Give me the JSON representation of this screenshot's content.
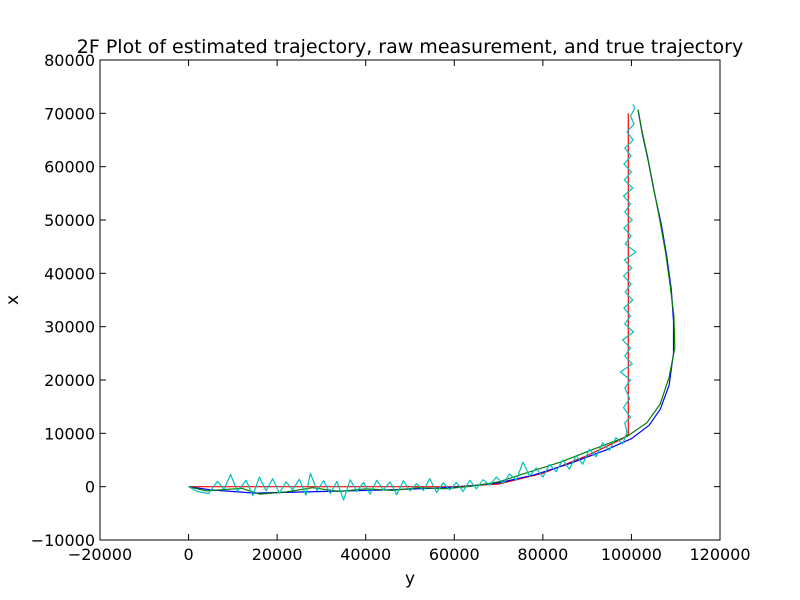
{
  "chart_data": {
    "type": "line",
    "title": "2F Plot of estimated trajectory, raw measurement, and true trajectory",
    "xlabel": "y",
    "ylabel": "x",
    "xlim": [
      -20000,
      120000
    ],
    "ylim": [
      -10000,
      80000
    ],
    "xticks": [
      -20000,
      0,
      20000,
      40000,
      60000,
      80000,
      100000,
      120000
    ],
    "yticks": [
      -10000,
      0,
      10000,
      20000,
      30000,
      40000,
      50000,
      60000,
      70000,
      80000
    ],
    "xtick_labels": [
      "−20000",
      "0",
      "20000",
      "40000",
      "60000",
      "80000",
      "100000",
      "120000"
    ],
    "ytick_labels": [
      "−10000",
      "0",
      "10000",
      "20000",
      "30000",
      "40000",
      "50000",
      "60000",
      "70000",
      "80000"
    ],
    "grid": false,
    "series": [
      {
        "color": "#ff0000",
        "points": [
          [
            0,
            0
          ],
          [
            20000,
            0
          ],
          [
            40000,
            0
          ],
          [
            60000,
            0
          ],
          [
            70000,
            500
          ],
          [
            80000,
            2500
          ],
          [
            90000,
            5800
          ],
          [
            98000,
            9000
          ],
          [
            99300,
            9800
          ],
          [
            99300,
            20000
          ],
          [
            99300,
            30000
          ],
          [
            99300,
            40000
          ],
          [
            99300,
            50000
          ],
          [
            99300,
            60000
          ],
          [
            99300,
            70000
          ]
        ]
      },
      {
        "color": "#0000ff",
        "points": [
          [
            0,
            0
          ],
          [
            5000,
            -600
          ],
          [
            15000,
            -1200
          ],
          [
            30000,
            -900
          ],
          [
            45000,
            -600
          ],
          [
            55000,
            -300
          ],
          [
            62000,
            0
          ],
          [
            70000,
            700
          ],
          [
            78000,
            2200
          ],
          [
            86000,
            4300
          ],
          [
            94000,
            6800
          ],
          [
            100000,
            9000
          ],
          [
            104000,
            11500
          ],
          [
            106500,
            14500
          ],
          [
            108500,
            19000
          ],
          [
            109500,
            25000
          ],
          [
            109500,
            31000
          ],
          [
            109000,
            37000
          ],
          [
            108000,
            43000
          ],
          [
            106800,
            49000
          ],
          [
            105200,
            55000
          ],
          [
            103800,
            61000
          ],
          [
            102500,
            66000
          ],
          [
            101500,
            70500
          ]
        ]
      },
      {
        "color": "#007f00",
        "points": [
          [
            0,
            0
          ],
          [
            4000,
            -800
          ],
          [
            12000,
            -300
          ],
          [
            16000,
            -1400
          ],
          [
            22000,
            -1000
          ],
          [
            28000,
            -200
          ],
          [
            34000,
            -900
          ],
          [
            40000,
            -400
          ],
          [
            46000,
            -700
          ],
          [
            52000,
            -200
          ],
          [
            58000,
            -400
          ],
          [
            64000,
            100
          ],
          [
            70000,
            900
          ],
          [
            76000,
            2500
          ],
          [
            84000,
            4600
          ],
          [
            92000,
            7200
          ],
          [
            99000,
            9400
          ],
          [
            103500,
            12000
          ],
          [
            106500,
            15500
          ],
          [
            108500,
            20500
          ],
          [
            109800,
            26000
          ],
          [
            109600,
            32000
          ],
          [
            108700,
            38000
          ],
          [
            107700,
            44000
          ],
          [
            106400,
            50000
          ],
          [
            105000,
            56000
          ],
          [
            103600,
            62000
          ],
          [
            102300,
            67000
          ],
          [
            101500,
            70700
          ]
        ]
      },
      {
        "color": "#00bfbf",
        "points": [
          [
            0,
            0
          ],
          [
            2000,
            -900
          ],
          [
            4500,
            -1300
          ],
          [
            6500,
            1000
          ],
          [
            8000,
            -500
          ],
          [
            9500,
            2300
          ],
          [
            11000,
            -900
          ],
          [
            13000,
            1200
          ],
          [
            14500,
            -1700
          ],
          [
            16000,
            1800
          ],
          [
            17500,
            -800
          ],
          [
            19000,
            1500
          ],
          [
            20500,
            -1200
          ],
          [
            22000,
            900
          ],
          [
            23500,
            -600
          ],
          [
            25000,
            1400
          ],
          [
            26500,
            -1600
          ],
          [
            27500,
            2500
          ],
          [
            29000,
            -700
          ],
          [
            30500,
            1100
          ],
          [
            32000,
            -1300
          ],
          [
            33500,
            1000
          ],
          [
            35000,
            -2500
          ],
          [
            36500,
            1300
          ],
          [
            38000,
            -900
          ],
          [
            39500,
            800
          ],
          [
            41000,
            -1400
          ],
          [
            42500,
            1200
          ],
          [
            44000,
            -600
          ],
          [
            45500,
            900
          ],
          [
            47000,
            -1500
          ],
          [
            48500,
            1100
          ],
          [
            50000,
            -800
          ],
          [
            51500,
            600
          ],
          [
            53000,
            -700
          ],
          [
            54500,
            1500
          ],
          [
            56000,
            -1100
          ],
          [
            57500,
            700
          ],
          [
            59000,
            -600
          ],
          [
            60500,
            800
          ],
          [
            62000,
            -900
          ],
          [
            63500,
            1200
          ],
          [
            65000,
            -400
          ],
          [
            66500,
            1300
          ],
          [
            68000,
            300
          ],
          [
            69500,
            1800
          ],
          [
            71000,
            600
          ],
          [
            72500,
            2400
          ],
          [
            74000,
            1200
          ],
          [
            75500,
            4600
          ],
          [
            77000,
            2000
          ],
          [
            78500,
            3500
          ],
          [
            80000,
            1800
          ],
          [
            81500,
            4200
          ],
          [
            83000,
            2800
          ],
          [
            84500,
            5000
          ],
          [
            86000,
            3300
          ],
          [
            87500,
            5800
          ],
          [
            89000,
            4200
          ],
          [
            90500,
            7000
          ],
          [
            92000,
            5600
          ],
          [
            93500,
            8200
          ],
          [
            95000,
            6800
          ],
          [
            96500,
            9200
          ],
          [
            98000,
            8000
          ],
          [
            99000,
            10200
          ],
          [
            98500,
            12000
          ],
          [
            99800,
            13000
          ],
          [
            98200,
            14800
          ],
          [
            99600,
            16500
          ],
          [
            98500,
            18500
          ],
          [
            99800,
            20000
          ],
          [
            97500,
            21500
          ],
          [
            100200,
            23000
          ],
          [
            98500,
            24500
          ],
          [
            99800,
            26000
          ],
          [
            98000,
            27500
          ],
          [
            100500,
            29000
          ],
          [
            98500,
            30500
          ],
          [
            99800,
            32000
          ],
          [
            98300,
            33500
          ],
          [
            100300,
            35000
          ],
          [
            98600,
            36500
          ],
          [
            99900,
            38000
          ],
          [
            98200,
            39500
          ],
          [
            100100,
            41000
          ],
          [
            98400,
            42500
          ],
          [
            101000,
            44000
          ],
          [
            98600,
            45500
          ],
          [
            99900,
            47000
          ],
          [
            98300,
            48500
          ],
          [
            100200,
            50000
          ],
          [
            98500,
            51500
          ],
          [
            99800,
            53000
          ],
          [
            98200,
            54500
          ],
          [
            100300,
            56000
          ],
          [
            98400,
            57500
          ],
          [
            100000,
            59000
          ],
          [
            98300,
            60500
          ],
          [
            99900,
            62000
          ],
          [
            98500,
            63500
          ],
          [
            100400,
            65000
          ],
          [
            99000,
            66500
          ],
          [
            100600,
            68000
          ],
          [
            99800,
            69500
          ],
          [
            100800,
            71000
          ],
          [
            100300,
            71700
          ]
        ]
      }
    ]
  }
}
